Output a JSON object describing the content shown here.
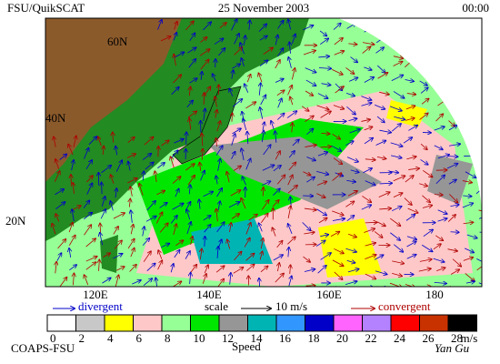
{
  "header": {
    "title": "FSU/QuikSCAT",
    "date": "25 November 2003",
    "time": "00:00"
  },
  "map": {
    "lat_labels": [
      "60N",
      "40N",
      "20N"
    ],
    "lon_labels": [
      "120E",
      "140E",
      "160E",
      "180"
    ]
  },
  "legend": {
    "divergent": "divergent",
    "scale": "scale",
    "scale_value": "10 m/s",
    "convergent": "convergent"
  },
  "colorbar": {
    "ticks": [
      0,
      2,
      4,
      6,
      8,
      10,
      12,
      14,
      16,
      18,
      20,
      22,
      24,
      26,
      28
    ],
    "unit": "m/s",
    "label": "Speed",
    "colors": [
      "#ffffff",
      "#c8c8c8",
      "#ffff00",
      "#ffc8c8",
      "#96ff96",
      "#00e600",
      "#969696",
      "#00b4b4",
      "#3296ff",
      "#0000c8",
      "#ff64ff",
      "#b482ff",
      "#ff0000",
      "#c83200",
      "#000000"
    ]
  },
  "footer": {
    "credit": "COAPS-FSU",
    "author": "Yan Gu"
  }
}
